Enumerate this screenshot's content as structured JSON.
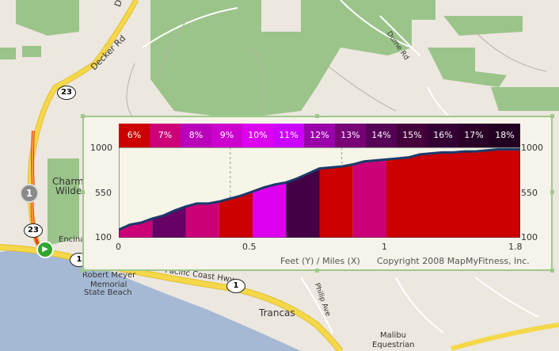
{
  "map": {
    "labels": [
      {
        "text": "Decker Canyon",
        "name": "label-decker-canyon"
      },
      {
        "text": "Decker Rd",
        "name": "label-decker-rd"
      },
      {
        "text": "Charml",
        "name": "label-charml"
      },
      {
        "text": "Wilder",
        "name": "label-wilder"
      },
      {
        "text": "Encina",
        "name": "label-encina"
      },
      {
        "text": "Robert Meyer",
        "name": "label-robert-meyer"
      },
      {
        "text": "Memorial",
        "name": "label-memorial"
      },
      {
        "text": "State Beach",
        "name": "label-state-beach"
      },
      {
        "text": "Trancas",
        "name": "label-trancas"
      },
      {
        "text": "Pacific Coast Hwy",
        "name": "label-pch"
      },
      {
        "text": "Dume Rd",
        "name": "label-dume-rd"
      },
      {
        "text": "Philip Ave",
        "name": "label-philip-ave"
      },
      {
        "text": "Malibu",
        "name": "label-malibu"
      },
      {
        "text": "Equestrian",
        "name": "label-equestrian"
      }
    ],
    "shields": [
      "23",
      "23",
      "1",
      "1"
    ],
    "markers": {
      "waypoint": "1",
      "start": "▶"
    }
  },
  "colors": {
    "grade_6": "#cc0000",
    "grade_7": "#cc0077",
    "grade_8": "#bb00bb",
    "grade_9": "#cc00cc",
    "grade_10": "#dd00ee",
    "grade_11": "#cc00ff",
    "grade_12": "#9900aa",
    "grade_13": "#770077",
    "grade_14": "#550055",
    "grade_15": "#44003a",
    "grade_16": "#330033",
    "grade_17": "#2a0028",
    "grade_18": "#220022",
    "road": "#f5d84a",
    "water": "#a6b9d4",
    "park": "#9bc48a"
  },
  "chart_data": {
    "type": "area",
    "grade_legend": [
      "6%",
      "7%",
      "8%",
      "9%",
      "10%",
      "11%",
      "12%",
      "13%",
      "14%",
      "15%",
      "16%",
      "17%",
      "18%"
    ],
    "xlabel": "Feet (Y) / Miles (X)",
    "x_ticks": [
      "0",
      "0.5",
      "1",
      "1.8"
    ],
    "y_ticks": [
      "1000",
      "550",
      "100"
    ],
    "y_ticks_right": [
      "1000",
      "550",
      "100"
    ],
    "xlim": [
      0,
      1.8
    ],
    "ylim": [
      100,
      1000
    ],
    "elevation": {
      "x": [
        0,
        0.05,
        0.1,
        0.15,
        0.2,
        0.25,
        0.3,
        0.35,
        0.4,
        0.45,
        0.5,
        0.55,
        0.6,
        0.65,
        0.7,
        0.75,
        0.8,
        0.85,
        0.9,
        0.95,
        1.0,
        1.05,
        1.1,
        1.15,
        1.2,
        1.25,
        1.3,
        1.35,
        1.4,
        1.45,
        1.5,
        1.55,
        1.6,
        1.65,
        1.7,
        1.75,
        1.8
      ],
      "y": [
        180,
        230,
        250,
        290,
        320,
        370,
        410,
        440,
        440,
        460,
        490,
        520,
        560,
        600,
        630,
        650,
        690,
        740,
        790,
        800,
        810,
        830,
        860,
        870,
        880,
        890,
        900,
        930,
        940,
        950,
        950,
        960,
        960,
        970,
        980,
        980,
        980
      ]
    },
    "segments": [
      {
        "x0": 0,
        "x1": 0.15,
        "color": "#cc0077"
      },
      {
        "x0": 0.15,
        "x1": 0.3,
        "color": "#660066"
      },
      {
        "x0": 0.3,
        "x1": 0.45,
        "color": "#cc0077"
      },
      {
        "x0": 0.45,
        "x1": 0.6,
        "color": "#cc0000"
      },
      {
        "x0": 0.6,
        "x1": 0.75,
        "color": "#dd00ee"
      },
      {
        "x0": 0.75,
        "x1": 0.9,
        "color": "#440044"
      },
      {
        "x0": 0.9,
        "x1": 1.05,
        "color": "#cc0000"
      },
      {
        "x0": 1.05,
        "x1": 1.2,
        "color": "#cc0077"
      },
      {
        "x0": 1.2,
        "x1": 1.8,
        "color": "#cc0000"
      }
    ],
    "caption": "Copyright 2008 MapMyFitness, Inc."
  }
}
